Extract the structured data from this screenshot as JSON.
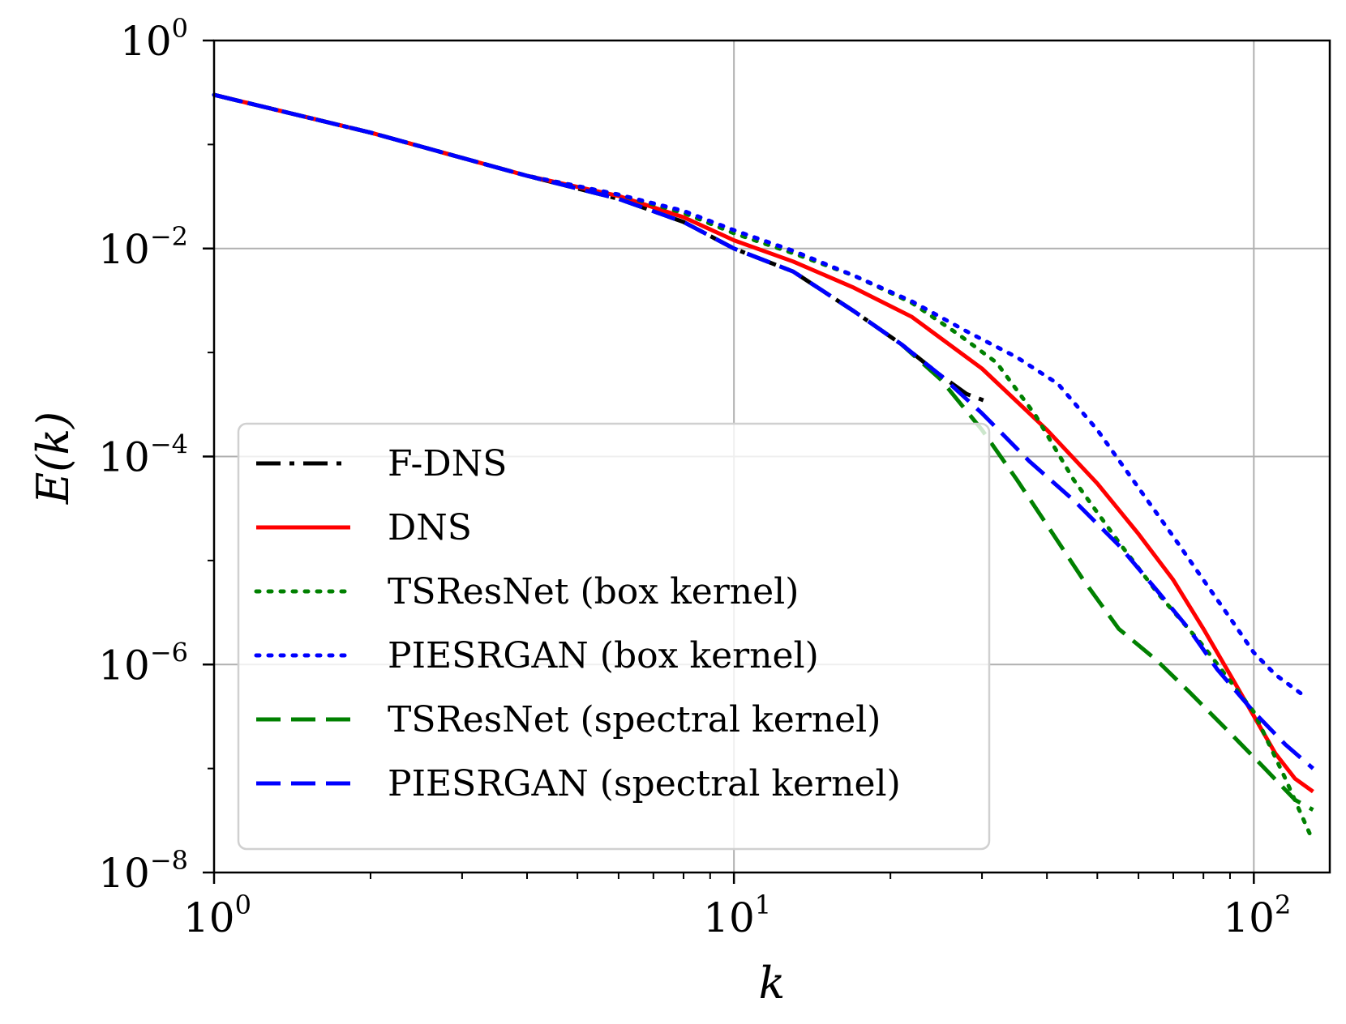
{
  "chart_data": {
    "type": "line",
    "title": "",
    "xlabel": "k",
    "ylabel": "E(k)",
    "xscale": "log",
    "yscale": "log",
    "xlim": [
      1,
      140
    ],
    "ylim": [
      1e-08,
      1
    ],
    "grid": true,
    "legend_position": "lower-left",
    "x_ticks": [
      {
        "value": 1,
        "base": "10",
        "exp": "0"
      },
      {
        "value": 10,
        "base": "10",
        "exp": "1"
      },
      {
        "value": 100,
        "base": "10",
        "exp": "2"
      }
    ],
    "y_ticks": [
      {
        "value": 1,
        "base": "10",
        "exp": "0"
      },
      {
        "value": 0.01,
        "base": "10",
        "exp": "−2"
      },
      {
        "value": 0.0001,
        "base": "10",
        "exp": "−4"
      },
      {
        "value": 1e-06,
        "base": "10",
        "exp": "−6"
      },
      {
        "value": 1e-08,
        "base": "10",
        "exp": "−8"
      }
    ],
    "series": [
      {
        "name": "F-DNS",
        "color": "#000000",
        "style": "dashdot",
        "x": [
          1,
          2,
          4,
          6,
          8,
          10,
          13,
          17,
          21,
          25,
          28,
          31
        ],
        "y": [
          0.3,
          0.13,
          0.05,
          0.03,
          0.018,
          0.01,
          0.006,
          0.0025,
          0.0012,
          0.0006,
          0.0004,
          0.00033
        ]
      },
      {
        "name": "DNS",
        "color": "#ff0000",
        "style": "solid",
        "x": [
          1,
          2,
          4,
          6,
          8,
          10,
          13,
          17,
          22,
          30,
          40,
          50,
          60,
          70,
          80,
          90,
          100,
          110,
          120,
          130
        ],
        "y": [
          0.3,
          0.13,
          0.05,
          0.032,
          0.02,
          0.012,
          0.0075,
          0.0042,
          0.0022,
          0.0007,
          0.00018,
          5.5e-05,
          1.8e-05,
          6.5e-06,
          2.2e-06,
          8e-07,
          3.2e-07,
          1.4e-07,
          8e-08,
          6e-08
        ]
      },
      {
        "name": "TSResNet (box kernel)",
        "color": "#008000",
        "style": "dotted",
        "x": [
          1,
          2,
          4,
          6,
          8,
          10,
          13,
          17,
          22,
          27,
          32,
          38,
          45,
          55,
          65,
          80,
          100,
          115,
          130
        ],
        "y": [
          0.3,
          0.13,
          0.05,
          0.033,
          0.022,
          0.014,
          0.009,
          0.0055,
          0.003,
          0.0015,
          0.0008,
          0.00025,
          6e-05,
          1.5e-05,
          5e-06,
          1.5e-06,
          3.5e-07,
          8e-08,
          2e-08
        ]
      },
      {
        "name": "PIESRGAN (box kernel)",
        "color": "#0000ff",
        "style": "dotted",
        "x": [
          1,
          2,
          4,
          6,
          8,
          10,
          13,
          17,
          22,
          28,
          35,
          42,
          50,
          60,
          70,
          80,
          90,
          100,
          110,
          125
        ],
        "y": [
          0.3,
          0.13,
          0.05,
          0.033,
          0.023,
          0.015,
          0.0095,
          0.0055,
          0.0031,
          0.0016,
          0.0009,
          0.0005,
          0.00018,
          5e-05,
          1.7e-05,
          6.5e-06,
          2.8e-06,
          1.3e-06,
          8e-07,
          5e-07
        ]
      },
      {
        "name": "TSResNet (spectral kernel)",
        "color": "#008000",
        "style": "dashed",
        "x": [
          1,
          2,
          4,
          6,
          8,
          10,
          13,
          17,
          21,
          25,
          30,
          35,
          40,
          47,
          55,
          65,
          75,
          90,
          105,
          120,
          130
        ],
        "y": [
          0.3,
          0.13,
          0.05,
          0.03,
          0.018,
          0.01,
          0.006,
          0.0025,
          0.0012,
          0.00055,
          0.00018,
          6e-05,
          2.2e-05,
          6.5e-06,
          2.2e-06,
          1.1e-06,
          5.5e-07,
          2.2e-07,
          1e-07,
          5e-08,
          4e-08
        ]
      },
      {
        "name": "PIESRGAN (spectral kernel)",
        "color": "#0000ff",
        "style": "dashed",
        "x": [
          1,
          2,
          4,
          6,
          8,
          10,
          13,
          17,
          21,
          25,
          30,
          37,
          45,
          55,
          65,
          75,
          85,
          100,
          115,
          130
        ],
        "y": [
          0.3,
          0.13,
          0.05,
          0.03,
          0.018,
          0.01,
          0.006,
          0.0025,
          0.0012,
          0.0006,
          0.00026,
          9e-05,
          3.8e-05,
          1.4e-05,
          5.2e-06,
          2.2e-06,
          9e-07,
          3.5e-07,
          1.7e-07,
          1e-07
        ]
      }
    ]
  }
}
